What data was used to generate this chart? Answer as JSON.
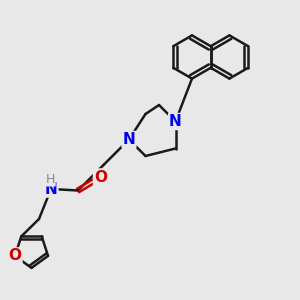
{
  "bg_color": "#e8e8e8",
  "bond_color": "#1a1a1a",
  "N_color": "#0000ee",
  "O_color": "#cc0000",
  "H_color": "#888888",
  "lw": 1.8,
  "fs": 10,
  "fig_size": [
    3.0,
    3.0
  ],
  "dpi": 100,
  "xlim": [
    0,
    10
  ],
  "ylim": [
    0,
    10
  ]
}
